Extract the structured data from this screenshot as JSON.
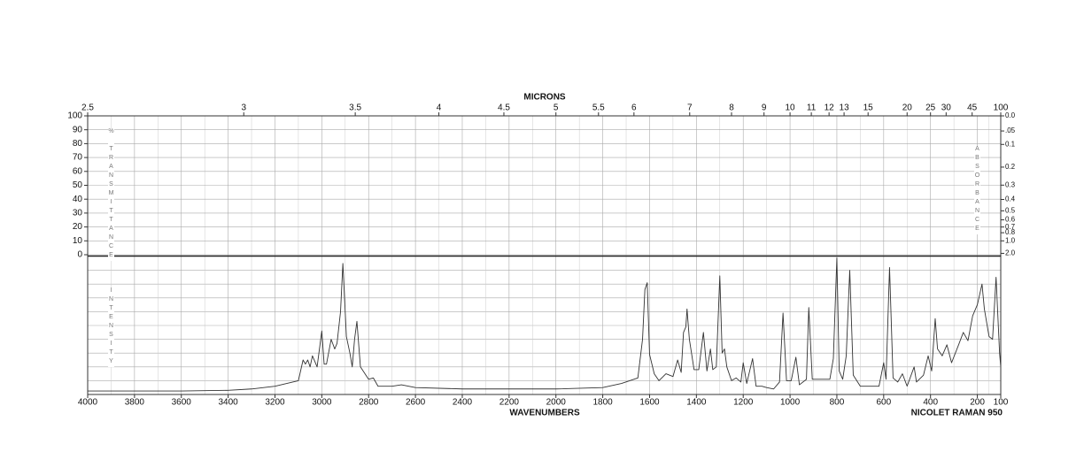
{
  "chart_data": {
    "type": "line",
    "top_axis_label": "MICRONS",
    "top_ticks": [
      2.5,
      3,
      3.5,
      4,
      4.5,
      5,
      5.5,
      6,
      7,
      8,
      9,
      10,
      11,
      12,
      13,
      15,
      20,
      25,
      30,
      45,
      100
    ],
    "xlabel": "WAVENUMBERS",
    "xlim": [
      4000,
      100
    ],
    "xticks": [
      4000,
      3800,
      3600,
      3400,
      3200,
      3000,
      2800,
      2600,
      2400,
      2200,
      2000,
      1800,
      1600,
      1400,
      1200,
      1000,
      800,
      600,
      400,
      200,
      100
    ],
    "ylabel": "% TRANSMITTANCE",
    "ylim": [
      0,
      100
    ],
    "yticks": [
      100,
      90,
      80,
      70,
      60,
      50,
      40,
      30,
      20,
      10,
      0
    ],
    "y2label": "ABSORBANCE",
    "y2ticks": [
      {
        "value": 0,
        "label": "0.0"
      },
      {
        "value": 0.05,
        "label": ".05"
      },
      0.1,
      0.2,
      0.3,
      0.4,
      0.5,
      0.6,
      0.7,
      0.8,
      {
        "value": 1,
        "label": "1.0"
      },
      {
        "value": 2,
        "label": "2.0"
      }
    ],
    "intensity_label": "INTENSITY",
    "intensity_lim": [
      0,
      100
    ],
    "instrument": "NICOLET RAMAN 950",
    "color": "#333333",
    "grid": true,
    "x": [
      4000,
      3800,
      3600,
      3400,
      3300,
      3200,
      3100,
      3080,
      3070,
      3060,
      3050,
      3040,
      3020,
      3000,
      2990,
      2980,
      2960,
      2945,
      2935,
      2920,
      2910,
      2895,
      2880,
      2870,
      2860,
      2850,
      2835,
      2800,
      2780,
      2760,
      2700,
      2660,
      2600,
      2400,
      2200,
      2000,
      1800,
      1720,
      1650,
      1630,
      1620,
      1610,
      1600,
      1580,
      1560,
      1530,
      1500,
      1480,
      1465,
      1455,
      1445,
      1440,
      1430,
      1410,
      1390,
      1370,
      1355,
      1340,
      1330,
      1315,
      1300,
      1290,
      1280,
      1270,
      1250,
      1230,
      1210,
      1200,
      1185,
      1160,
      1145,
      1120,
      1100,
      1070,
      1045,
      1030,
      1015,
      995,
      975,
      960,
      930,
      920,
      905,
      850,
      830,
      815,
      800,
      790,
      775,
      760,
      745,
      730,
      700,
      640,
      620,
      600,
      590,
      575,
      560,
      540,
      520,
      500,
      470,
      460,
      430,
      410,
      395,
      380,
      370,
      350,
      330,
      310,
      280,
      260,
      240,
      220,
      200,
      180,
      170,
      150,
      135,
      120,
      105,
      100
    ],
    "values": [
      2.5,
      2.5,
      2.5,
      3,
      4,
      6,
      10,
      25,
      22,
      25,
      20,
      28,
      20,
      46,
      22,
      22,
      40,
      33,
      37,
      60,
      95,
      42,
      30,
      20,
      40,
      53,
      20,
      11,
      12,
      6,
      6,
      7,
      5,
      4,
      4,
      4,
      5,
      8,
      12,
      40,
      76,
      81,
      29,
      15,
      10,
      15,
      13,
      25,
      16,
      45,
      49,
      62,
      40,
      18,
      18,
      45,
      17,
      33,
      18,
      20,
      86,
      30,
      33,
      20,
      10,
      12,
      9,
      23,
      8,
      26,
      6,
      6,
      5,
      4,
      9,
      59,
      10,
      10,
      27,
      7,
      11,
      63,
      11,
      11,
      11,
      26,
      99,
      17,
      11,
      28,
      90,
      14,
      6,
      6,
      6,
      23,
      11,
      92,
      12,
      9,
      15,
      6,
      20,
      9,
      14,
      28,
      17,
      55,
      33,
      28,
      36,
      23,
      36,
      45,
      39,
      57,
      65,
      80,
      62,
      42,
      40,
      85,
      30,
      20
    ]
  }
}
